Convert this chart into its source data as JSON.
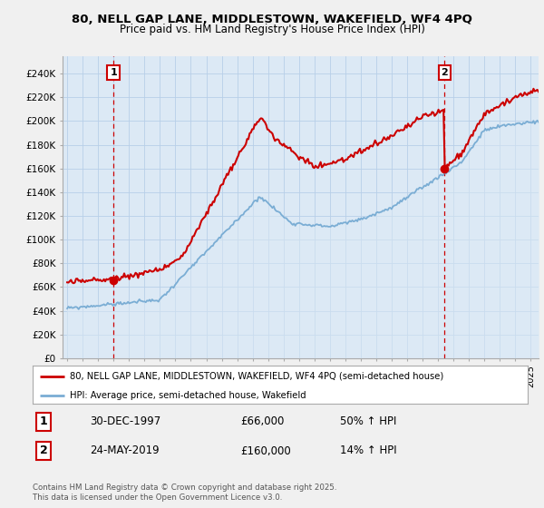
{
  "title_line1": "80, NELL GAP LANE, MIDDLESTOWN, WAKEFIELD, WF4 4PQ",
  "title_line2": "Price paid vs. HM Land Registry's House Price Index (HPI)",
  "ylabel_ticks": [
    "£0",
    "£20K",
    "£40K",
    "£60K",
    "£80K",
    "£100K",
    "£120K",
    "£140K",
    "£160K",
    "£180K",
    "£200K",
    "£220K",
    "£240K"
  ],
  "ytick_values": [
    0,
    20000,
    40000,
    60000,
    80000,
    100000,
    120000,
    140000,
    160000,
    180000,
    200000,
    220000,
    240000
  ],
  "ylim": [
    0,
    255000
  ],
  "xlim_start": 1994.7,
  "xlim_end": 2025.5,
  "point1_x": 1997.99,
  "point1_y": 66000,
  "point2_x": 2019.42,
  "point2_y": 160000,
  "price_line_color": "#cc0000",
  "hpi_line_color": "#7aadd4",
  "hpi_fill_color": "#dce9f5",
  "vline_color": "#cc0000",
  "box_edge_color": "#cc0000",
  "legend_text1": "80, NELL GAP LANE, MIDDLESTOWN, WAKEFIELD, WF4 4PQ (semi-detached house)",
  "legend_text2": "HPI: Average price, semi-detached house, Wakefield",
  "table_row1_num": "1",
  "table_row1_date": "30-DEC-1997",
  "table_row1_price": "£66,000",
  "table_row1_hpi": "50% ↑ HPI",
  "table_row2_num": "2",
  "table_row2_date": "24-MAY-2019",
  "table_row2_price": "£160,000",
  "table_row2_hpi": "14% ↑ HPI",
  "footer": "Contains HM Land Registry data © Crown copyright and database right 2025.\nThis data is licensed under the Open Government Licence v3.0.",
  "bg_color": "#f0f0f0",
  "plot_bg_color": "#dce9f5",
  "grid_color": "#b8cfe8",
  "legend_bg": "#ffffff",
  "legend_edge": "#aaaaaa"
}
